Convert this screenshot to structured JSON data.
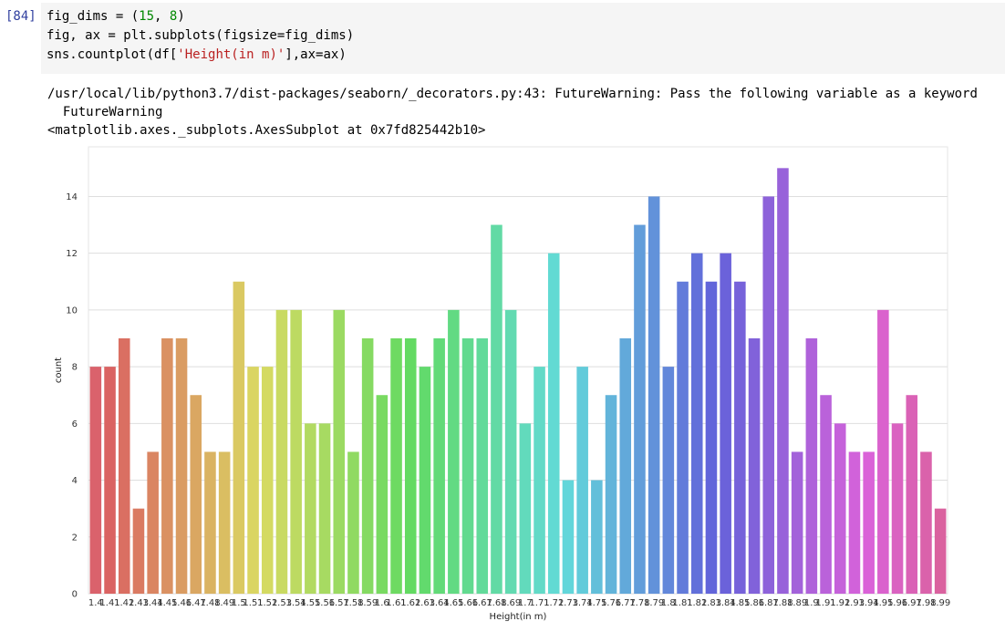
{
  "cell": {
    "prompt": "[84]",
    "code": [
      [
        {
          "t": "fig_dims = ("
        },
        {
          "t": "15",
          "c": "num"
        },
        {
          "t": ", "
        },
        {
          "t": "8",
          "c": "num"
        },
        {
          "t": ")"
        }
      ],
      [
        {
          "t": "fig, ax = plt.subplots(figsize=fig_dims)"
        }
      ],
      [
        {
          "t": "sns.countplot(df["
        },
        {
          "t": "'Height(in m)'",
          "c": "str"
        },
        {
          "t": "],ax=ax)"
        }
      ]
    ]
  },
  "output": {
    "warning_line": "/usr/local/lib/python3.7/dist-packages/seaborn/_decorators.py:43: FutureWarning: Pass the following variable as a keyword",
    "warning_sub": "  FutureWarning",
    "repr_line": "<matplotlib.axes._subplots.AxesSubplot at 0x7fd825442b10>"
  },
  "chart_data": {
    "type": "bar",
    "xlabel": "Height(in m)",
    "ylabel": "count",
    "ylim": [
      0,
      15.75
    ],
    "yticks": [
      0,
      2,
      4,
      6,
      8,
      10,
      12,
      14
    ],
    "grid": "horizontal",
    "palette": "husl",
    "categories": [
      "1.4",
      "1.41",
      "1.42",
      "1.43",
      "1.44",
      "1.45",
      "1.46",
      "1.47",
      "1.48",
      "1.49",
      "1.5",
      "1.51",
      "1.52",
      "1.53",
      "1.54",
      "1.55",
      "1.56",
      "1.57",
      "1.58",
      "1.59",
      "1.6",
      "1.61",
      "1.62",
      "1.63",
      "1.64",
      "1.65",
      "1.66",
      "1.67",
      "1.68",
      "1.69",
      "1.7",
      "1.71",
      "1.72",
      "1.73",
      "1.74",
      "1.75",
      "1.76",
      "1.77",
      "1.78",
      "1.79",
      "1.8",
      "1.81",
      "1.82",
      "1.83",
      "1.84",
      "1.85",
      "1.86",
      "1.87",
      "1.88",
      "1.89",
      "1.9",
      "1.91",
      "1.92",
      "1.93",
      "1.94",
      "1.95",
      "1.96",
      "1.97",
      "1.98",
      "1.99"
    ],
    "values": [
      8,
      8,
      9,
      3,
      5,
      9,
      9,
      7,
      5,
      5,
      11,
      8,
      8,
      10,
      10,
      6,
      6,
      10,
      5,
      9,
      7,
      9,
      9,
      8,
      9,
      10,
      9,
      9,
      13,
      10,
      6,
      8,
      12,
      4,
      8,
      4,
      7,
      9,
      13,
      14,
      8,
      11,
      12,
      11,
      12,
      11,
      9,
      14,
      15,
      5,
      9,
      7,
      6,
      5,
      5,
      10,
      6,
      7,
      5,
      3
    ]
  }
}
